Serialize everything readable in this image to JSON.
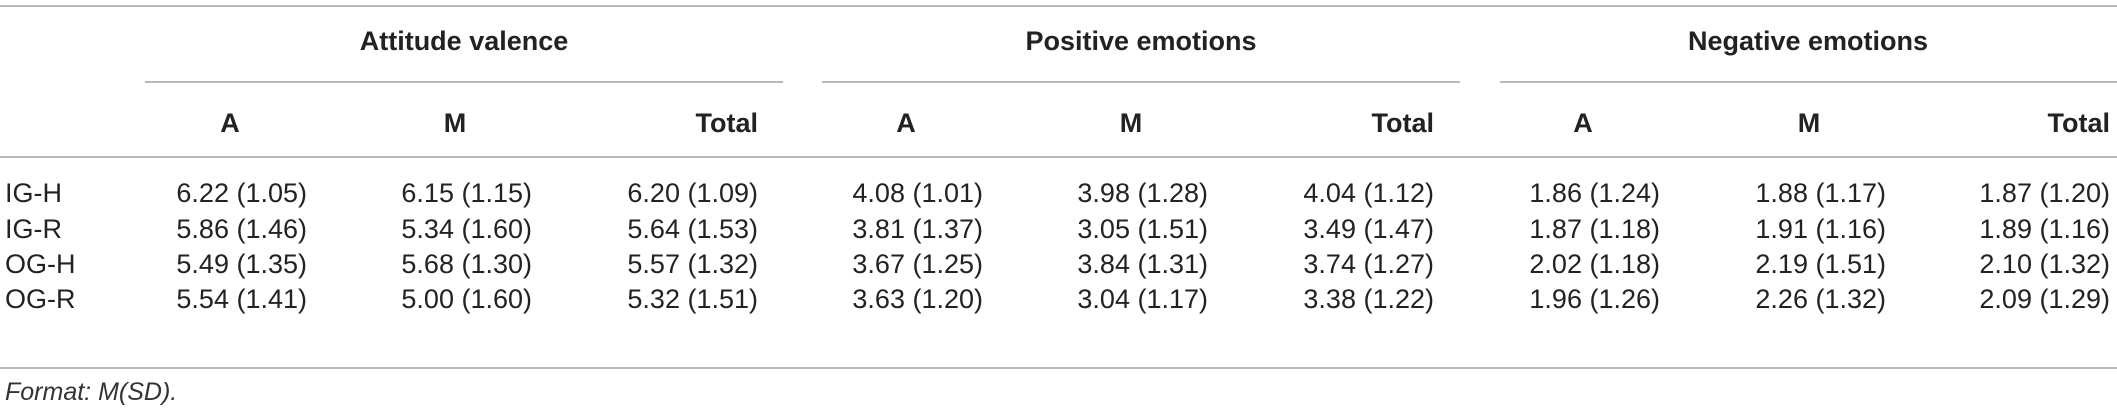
{
  "table": {
    "groups": [
      "Attitude valence",
      "Positive emotions",
      "Negative emotions"
    ],
    "subheaders": [
      "A",
      "M",
      "Total",
      "A",
      "M",
      "Total",
      "A",
      "M",
      "Total"
    ],
    "rows": [
      {
        "label": "IG-H",
        "cells": [
          "6.22 (1.05)",
          "6.15 (1.15)",
          "6.20 (1.09)",
          "4.08 (1.01)",
          "3.98 (1.28)",
          "4.04 (1.12)",
          "1.86 (1.24)",
          "1.88 (1.17)",
          "1.87 (1.20)"
        ]
      },
      {
        "label": "IG-R",
        "cells": [
          "5.86 (1.46)",
          "5.34 (1.60)",
          "5.64 (1.53)",
          "3.81 (1.37)",
          "3.05 (1.51)",
          "3.49 (1.47)",
          "1.87 (1.18)",
          "1.91 (1.16)",
          "1.89 (1.16)"
        ]
      },
      {
        "label": "OG-H",
        "cells": [
          "5.49 (1.35)",
          "5.68 (1.30)",
          "5.57 (1.32)",
          "3.67 (1.25)",
          "3.84 (1.31)",
          "3.74 (1.27)",
          "2.02 (1.18)",
          "2.19 (1.51)",
          "2.10 (1.32)"
        ]
      },
      {
        "label": "OG-R",
        "cells": [
          "5.54 (1.41)",
          "5.00 (1.60)",
          "5.32 (1.51)",
          "3.63 (1.20)",
          "3.04 (1.17)",
          "3.38 (1.22)",
          "1.96 (1.26)",
          "2.26 (1.32)",
          "2.09 (1.29)"
        ]
      }
    ]
  },
  "note": "Format: M(SD)."
}
